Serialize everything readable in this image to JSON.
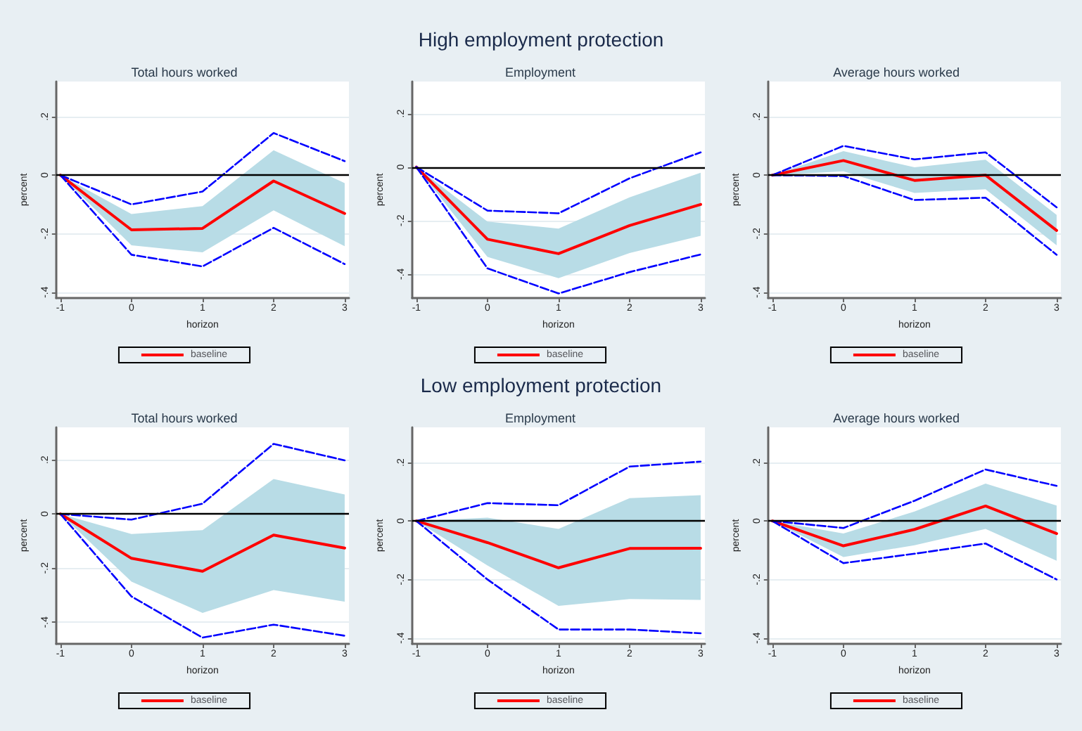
{
  "chart_data": [
    {
      "type": "other",
      "title": "High employment protection"
    },
    {
      "type": "line",
      "title": "Total hours worked",
      "xlabel": "horizon",
      "ylabel": "percent",
      "x": [
        -1,
        0,
        1,
        2,
        3
      ],
      "xlim": [
        -1.06,
        3.06
      ],
      "xticks": [
        -1,
        0,
        1,
        2,
        3
      ],
      "ylim": [
        -0.42,
        0.32
      ],
      "yticks": [
        {
          "value": -0.4,
          "label": "-.4"
        },
        {
          "value": -0.2,
          "label": "-.2"
        },
        {
          "value": 0,
          "label": "0"
        },
        {
          "value": 0.2,
          "label": ".2"
        }
      ],
      "grid": "y",
      "legend": "bottom",
      "marker": "none",
      "ref_lines": [
        {
          "axis": "y",
          "value": 0,
          "color": "#000000"
        }
      ],
      "series": [
        {
          "name": "baseline",
          "color": "#ff0000",
          "line_style": "solid",
          "values": [
            0,
            -0.187,
            -0.182,
            -0.02,
            -0.131
          ],
          "lower": [
            0,
            -0.24,
            -0.264,
            -0.12,
            -0.243
          ],
          "upper": [
            0,
            -0.133,
            -0.106,
            0.085,
            -0.027
          ]
        },
        {
          "color": "#0000ff",
          "line_style": "dashed",
          "values": [
            0,
            -0.1,
            -0.056,
            0.144,
            0.048
          ]
        },
        {
          "color": "#0000ff",
          "line_style": "dashed",
          "values": [
            0,
            -0.272,
            -0.312,
            -0.18,
            -0.304
          ]
        }
      ]
    },
    {
      "type": "line",
      "title": "Employment",
      "xlabel": "horizon",
      "ylabel": "percent",
      "x": [
        -1,
        0,
        1,
        2,
        3
      ],
      "xlim": [
        -1.06,
        3.06
      ],
      "xticks": [
        -1,
        0,
        1,
        2,
        3
      ],
      "ylim": [
        -0.49,
        0.32
      ],
      "yticks": [
        {
          "value": -0.4,
          "label": "-.4"
        },
        {
          "value": -0.2,
          "label": "-.2"
        },
        {
          "value": 0,
          "label": "0"
        },
        {
          "value": 0.2,
          "label": ".2"
        }
      ],
      "grid": "y",
      "legend": "bottom",
      "marker": "none",
      "ref_lines": [
        {
          "axis": "y",
          "value": 0,
          "color": "#000000"
        }
      ],
      "series": [
        {
          "name": "baseline",
          "color": "#ff0000",
          "line_style": "solid",
          "values": [
            0,
            -0.27,
            -0.324,
            -0.219,
            -0.14
          ],
          "lower": [
            0,
            -0.336,
            -0.416,
            -0.322,
            -0.257
          ],
          "upper": [
            0,
            -0.204,
            -0.23,
            -0.113,
            -0.021
          ]
        },
        {
          "color": "#0000ff",
          "line_style": "dashed",
          "values": [
            0,
            -0.163,
            -0.173,
            -0.042,
            0.055
          ]
        },
        {
          "color": "#0000ff",
          "line_style": "dashed",
          "values": [
            0,
            -0.379,
            -0.473,
            -0.393,
            -0.327
          ]
        }
      ]
    },
    {
      "type": "line",
      "title": "Average hours worked",
      "xlabel": "horizon",
      "ylabel": "percent",
      "x": [
        -1,
        0,
        1,
        2,
        3
      ],
      "xlim": [
        -1.06,
        3.06
      ],
      "xticks": [
        -1,
        0,
        1,
        2,
        3
      ],
      "ylim": [
        -0.42,
        0.32
      ],
      "yticks": [
        {
          "value": -0.4,
          "label": "-.4"
        },
        {
          "value": -0.2,
          "label": "-.2"
        },
        {
          "value": 0,
          "label": "0"
        },
        {
          "value": 0.2,
          "label": ".2"
        }
      ],
      "grid": "y",
      "legend": "bottom",
      "marker": "none",
      "ref_lines": [
        {
          "axis": "y",
          "value": 0,
          "color": "#000000"
        }
      ],
      "series": [
        {
          "name": "baseline",
          "color": "#ff0000",
          "line_style": "solid",
          "values": [
            0,
            0.05,
            -0.018,
            0,
            -0.189
          ],
          "lower": [
            0,
            0.013,
            -0.061,
            -0.048,
            -0.24
          ],
          "upper": [
            0,
            0.082,
            0.027,
            0.053,
            -0.136
          ]
        },
        {
          "color": "#0000ff",
          "line_style": "dashed",
          "values": [
            0,
            0.1,
            0.054,
            0.078,
            -0.11
          ]
        },
        {
          "color": "#0000ff",
          "line_style": "dashed",
          "values": [
            0,
            -0.003,
            -0.085,
            -0.077,
            -0.272
          ]
        }
      ]
    },
    {
      "type": "other",
      "title": "Low employment protection"
    },
    {
      "type": "line",
      "title": "Total hours worked",
      "xlabel": "horizon",
      "ylabel": "percent",
      "x": [
        -1,
        0,
        1,
        2,
        3
      ],
      "xlim": [
        -1.06,
        3.06
      ],
      "xticks": [
        -1,
        0,
        1,
        2,
        3
      ],
      "ylim": [
        -0.48,
        0.32
      ],
      "yticks": [
        {
          "value": -0.4,
          "label": "-.4"
        },
        {
          "value": -0.2,
          "label": "-.2"
        },
        {
          "value": 0,
          "label": "0"
        },
        {
          "value": 0.2,
          "label": ".2"
        }
      ],
      "grid": "y",
      "legend": "bottom",
      "marker": "none",
      "ref_lines": [
        {
          "axis": "y",
          "value": 0,
          "color": "#000000"
        }
      ],
      "series": [
        {
          "name": "baseline",
          "color": "#ff0000",
          "line_style": "solid",
          "values": [
            0,
            -0.164,
            -0.212,
            -0.078,
            -0.126
          ],
          "lower": [
            0,
            -0.25,
            -0.366,
            -0.281,
            -0.324
          ],
          "upper": [
            0,
            -0.074,
            -0.06,
            0.129,
            0.072
          ]
        },
        {
          "color": "#0000ff",
          "line_style": "dashed",
          "values": [
            0,
            -0.021,
            0.038,
            0.259,
            0.198
          ]
        },
        {
          "color": "#0000ff",
          "line_style": "dashed",
          "values": [
            0,
            -0.305,
            -0.457,
            -0.409,
            -0.45
          ]
        }
      ]
    },
    {
      "type": "line",
      "title": "Employment",
      "xlabel": "horizon",
      "ylabel": "percent",
      "x": [
        -1,
        0,
        1,
        2,
        3
      ],
      "xlim": [
        -1.06,
        3.06
      ],
      "xticks": [
        -1,
        0,
        1,
        2,
        3
      ],
      "ylim": [
        -0.42,
        0.32
      ],
      "yticks": [
        {
          "value": -0.4,
          "label": "-.4"
        },
        {
          "value": -0.2,
          "label": "-.2"
        },
        {
          "value": 0,
          "label": "0"
        },
        {
          "value": 0.2,
          "label": ".2"
        }
      ],
      "grid": "y",
      "legend": "bottom",
      "marker": "none",
      "ref_lines": [
        {
          "axis": "y",
          "value": 0,
          "color": "#000000"
        }
      ],
      "series": [
        {
          "name": "baseline",
          "color": "#ff0000",
          "line_style": "solid",
          "values": [
            0,
            -0.074,
            -0.16,
            -0.094,
            -0.093
          ],
          "lower": [
            0,
            -0.152,
            -0.29,
            -0.267,
            -0.27
          ],
          "upper": [
            0,
            0.011,
            -0.027,
            0.078,
            0.088
          ]
        },
        {
          "color": "#0000ff",
          "line_style": "dashed",
          "values": [
            0,
            0.061,
            0.054,
            0.186,
            0.203
          ]
        },
        {
          "color": "#0000ff",
          "line_style": "dashed",
          "values": [
            0,
            -0.2,
            -0.371,
            -0.371,
            -0.384
          ]
        }
      ]
    },
    {
      "type": "line",
      "title": "Average hours worked",
      "xlabel": "horizon",
      "ylabel": "percent",
      "x": [
        -1,
        0,
        1,
        2,
        3
      ],
      "xlim": [
        -1.06,
        3.06
      ],
      "xticks": [
        -1,
        0,
        1,
        2,
        3
      ],
      "ylim": [
        -0.42,
        0.32
      ],
      "yticks": [
        {
          "value": -0.4,
          "label": "-.4"
        },
        {
          "value": -0.2,
          "label": "-.2"
        },
        {
          "value": 0,
          "label": "0"
        },
        {
          "value": 0.2,
          "label": ".2"
        }
      ],
      "grid": "y",
      "legend": "bottom",
      "marker": "none",
      "ref_lines": [
        {
          "axis": "y",
          "value": 0,
          "color": "#000000"
        }
      ],
      "series": [
        {
          "name": "baseline",
          "color": "#ff0000",
          "line_style": "solid",
          "values": [
            0,
            -0.085,
            -0.029,
            0.051,
            -0.043
          ],
          "lower": [
            0,
            -0.123,
            -0.083,
            -0.027,
            -0.136
          ],
          "upper": [
            0,
            -0.043,
            0.032,
            0.128,
            0.053
          ]
        },
        {
          "color": "#0000ff",
          "line_style": "dashed",
          "values": [
            0,
            -0.024,
            0.069,
            0.176,
            0.12
          ]
        },
        {
          "color": "#0000ff",
          "line_style": "dashed",
          "values": [
            0,
            -0.144,
            -0.112,
            -0.077,
            -0.2
          ]
        }
      ]
    }
  ]
}
